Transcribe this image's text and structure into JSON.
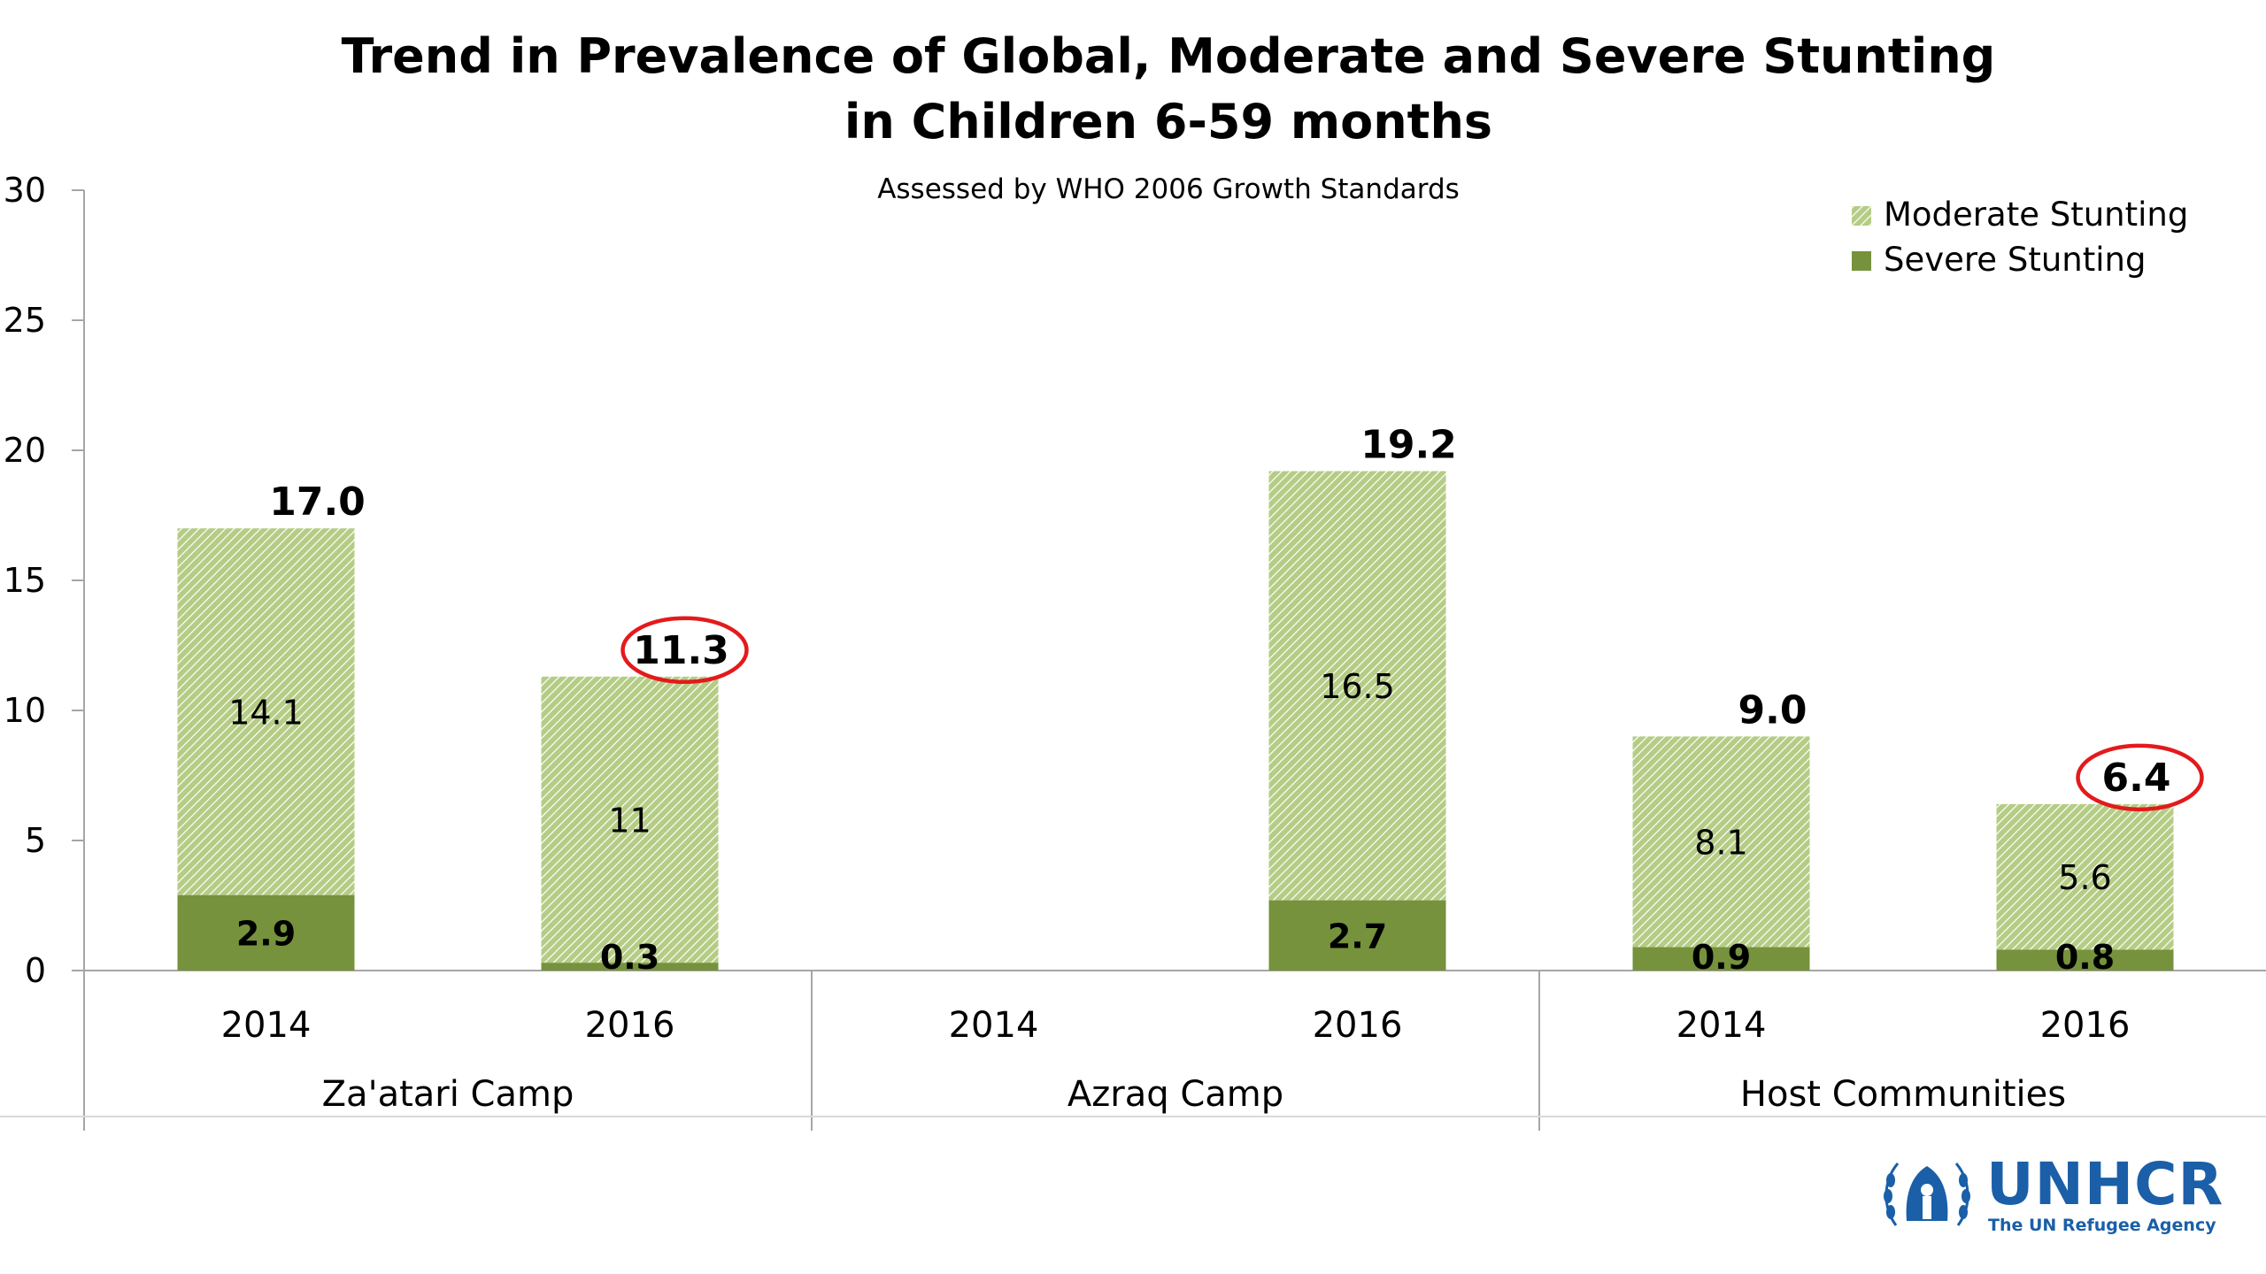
{
  "chart_data": {
    "type": "bar",
    "stacked": true,
    "title_line1": "Trend in Prevalence of Global, Moderate and Severe Stunting",
    "title_line2": "in Children 6-59 months",
    "subtitle": "Assessed by WHO 2006 Growth Standards",
    "ylim": [
      0,
      30
    ],
    "yticks": [
      "0",
      "5",
      "10",
      "15",
      "20",
      "25",
      "30"
    ],
    "groups": [
      "Za'atari Camp",
      "Azraq Camp",
      "Host Communities"
    ],
    "categories": [
      "2014",
      "2016",
      "2014",
      "2016",
      "2014",
      "2016"
    ],
    "series": [
      {
        "name": "Severe Stunting",
        "values": [
          2.9,
          0.3,
          null,
          2.7,
          0.9,
          0.8
        ],
        "labels": [
          "2.9",
          "0.3",
          "",
          "2.7",
          "0.9",
          "0.8"
        ]
      },
      {
        "name": "Moderate Stunting",
        "values": [
          14.1,
          11,
          null,
          16.5,
          8.1,
          5.6
        ],
        "labels": [
          "14.1",
          "11",
          "",
          "16.5",
          "8.1",
          "5.6"
        ]
      }
    ],
    "totals": [
      "17.0",
      "11.3",
      "",
      "19.2",
      "9.0",
      "6.4"
    ],
    "highlighted_totals": [
      1,
      5
    ],
    "legend_position": "top-right",
    "grid": false,
    "colors": {
      "severe": "#76923c",
      "moderate_fill": "#c4d79b",
      "moderate_hatch": "#ffffff",
      "highlight": "#e31a1c"
    }
  },
  "logo": {
    "word": "UNHCR",
    "tagline": "The UN Refugee Agency",
    "color": "#1a5fa8"
  }
}
